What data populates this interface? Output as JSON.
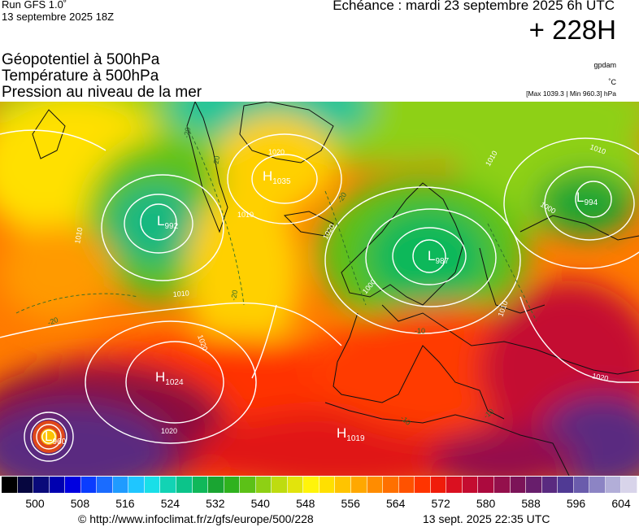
{
  "header": {
    "run_model": "Run GFS 1.0˚",
    "run_date": "13 septembre 2025 18Z",
    "valid_label": "Echéance : mardi 23 septembre 2025 6h UTC",
    "lead_time": "+ 228H"
  },
  "parameters": [
    {
      "label": "Géopotentiel à 500hPa",
      "unit": "gpdam"
    },
    {
      "label": "Température à 500hPa",
      "unit": "˚C"
    },
    {
      "label": "Pression au niveau de la mer",
      "unit": "[Max 1039.3 | Min 960.3] hPa"
    }
  ],
  "pressure_centers": [
    {
      "type": "L",
      "value": "992"
    },
    {
      "type": "H",
      "value": "1035"
    },
    {
      "type": "L",
      "value": "994"
    },
    {
      "type": "L",
      "value": "987"
    },
    {
      "type": "H",
      "value": "1024"
    },
    {
      "type": "L",
      "value": "960"
    },
    {
      "type": "H",
      "value": "1019"
    }
  ],
  "isobar_labels": [
    "1010",
    "1000",
    "1010",
    "1010",
    "1020",
    "1020",
    "1010",
    "1020",
    "1020",
    "1000",
    "1010",
    "1020",
    "1010"
  ],
  "temp_labels": [
    "-20",
    "-20",
    "-20",
    "-20",
    "-20",
    "-10",
    "-10",
    "-10"
  ],
  "colorbar": {
    "ticks": [
      "500",
      "508",
      "516",
      "524",
      "532",
      "540",
      "548",
      "556",
      "564",
      "572",
      "580",
      "588",
      "596",
      "604"
    ],
    "colors": [
      "#000000",
      "#06063f",
      "#0a0a7a",
      "#0000b0",
      "#0000e0",
      "#0a3cff",
      "#1a6cff",
      "#1f9bff",
      "#1fc6ff",
      "#19dfe8",
      "#12d3b4",
      "#0cc48a",
      "#10b85a",
      "#1aa532",
      "#2fb21e",
      "#5cc117",
      "#8ed014",
      "#bedc10",
      "#e2e40c",
      "#fff40a",
      "#ffe000",
      "#ffc400",
      "#ffa800",
      "#ff8c00",
      "#ff7000",
      "#ff5200",
      "#ff3400",
      "#f01c0a",
      "#da1020",
      "#c40c30",
      "#ac0a3e",
      "#94104c",
      "#7c1458",
      "#681e6c",
      "#5a2a80",
      "#503a94",
      "#6a5cac",
      "#8c84c4",
      "#b2aed8",
      "#d8d4ea"
    ]
  },
  "footer": {
    "copyright": "© http://www.infoclimat.fr/z/gfs/europe/500/228",
    "timestamp": "13 sept. 2025 22:35 UTC"
  },
  "theme": {
    "low_color": "#1a9a34",
    "high_color": "#d81c14",
    "isobar_color": "#ffffff"
  }
}
